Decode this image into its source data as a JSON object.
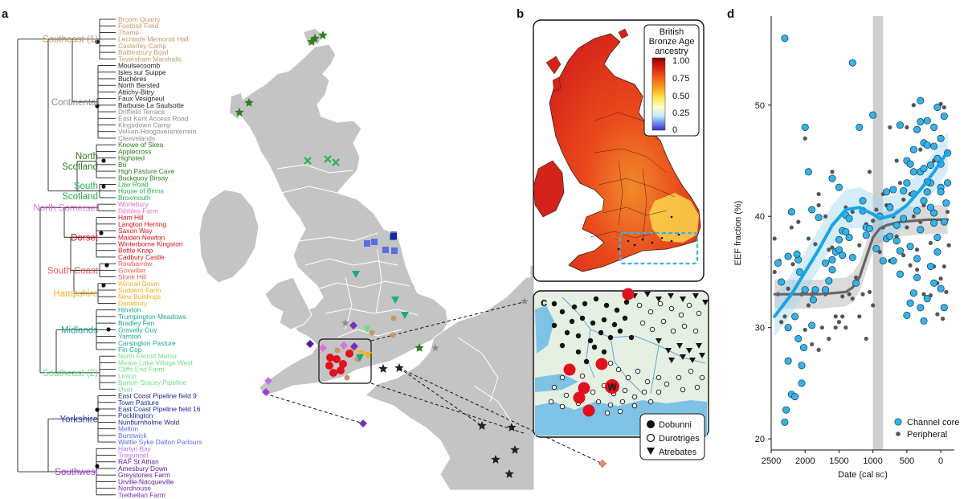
{
  "panel_labels": {
    "a": "a",
    "b": "b",
    "c": "c",
    "d": "d"
  },
  "tree": {
    "groups": [
      {
        "label": "Southeast (1)",
        "color": "#c49a6c",
        "leaves": [
          "Broom Quarry",
          "Football Field",
          "Thame",
          "Lechlade Memorial Hall",
          "Casterley Camp",
          "Battlesbury Bowl",
          "Teversham Marshalls"
        ]
      },
      {
        "label": "Continental",
        "color": "#8c8c8c",
        "leaves": [
          "Moulsecoomb",
          "Isles sur Suippe",
          "Buchères",
          "North Bersted",
          "Attichy-Bitry",
          "Faux Vesigneul",
          "Barbuise La Saulsotte",
          "Driffield Terrace",
          "East Kent Access Road",
          "Kingsdown Camp",
          "Velsen-Hoogoverenterrein",
          "Cleevelands"
        ],
        "leaf_colors": [
          "#222",
          "#222",
          "#222",
          "#222",
          "#222",
          "#222",
          "#222",
          "#8c8c8c",
          "#8c8c8c",
          "#8c8c8c",
          "#8c8c8c",
          "#8c8c8c"
        ]
      },
      {
        "label": "North\nScotland",
        "color": "#2e7d1e",
        "leaves": [
          "Knowe of Skea",
          "Applecross",
          "Highsted",
          "Bu",
          "High Pasture Cave",
          "Buckquoy Birsay"
        ]
      },
      {
        "label": "South\nScotland",
        "color": "#22b24c",
        "leaves": [
          "Law Road",
          "House of Binns",
          "Broxmouth"
        ]
      },
      {
        "label": "North Somerset",
        "color": "#e070d8",
        "leaves": [
          "Worlebury",
          "Dibbles Farm"
        ]
      },
      {
        "label": "Dorset",
        "color": "#e0101c",
        "leaves": [
          "Ham Hill",
          "Langton Herring",
          "Saxon Way",
          "Maiden Newton",
          "Winterborne Kingston",
          "Bottle Knap",
          "Cadbury Castle"
        ]
      },
      {
        "label": "South Coast",
        "color": "#f05a5a",
        "leaves": [
          "Rowbarrow",
          "Goxwiller",
          "Slonk Hill"
        ]
      },
      {
        "label": "Hampshire",
        "color": "#f0b020",
        "leaves": [
          "Winnall Down",
          "Suddern Farm",
          "New Buildings",
          "Danebury"
        ]
      },
      {
        "label": "Midlands",
        "color": "#1aa890",
        "leaves": [
          "Hinxton",
          "Trumpington Meadows",
          "Bradley Fen",
          "Gravelly Guy",
          "Yarnton",
          "Carsington Pasture",
          "Fin Cop"
        ]
      },
      {
        "label": "Southeast (2)",
        "color": "#6fe08a",
        "leaves": [
          "North Ferrott Manor",
          "Meare Lake Village West",
          "Cliffs End Farm",
          "Linton",
          "Barton-Stacey Pipeline",
          "Over"
        ]
      },
      {
        "label": "Yorkshire",
        "color": "#2a3ab0",
        "leaves": [
          "East Coast Pipeline field 9",
          "Town Pasture",
          "East Coast Pipeline field 16",
          "Pocklington",
          "Nunburnholme Wold",
          "Melton",
          "Burstwick",
          "Wattle Syke Dalton Parlours"
        ],
        "leaf_colors": [
          "#1a2a90",
          "#1a2a90",
          "#1a2a90",
          "#1a2a90",
          "#1a2a90",
          "#5b6ee0",
          "#5b6ee0",
          "#5b6ee0"
        ]
      },
      {
        "label": "Southwest",
        "color": "#a040d8",
        "leaves": [
          "Harlyn Bay",
          "Tregunnel",
          "RAF St Athan",
          "Amesbury Down",
          "Greystones Farm",
          "Urville-Nacqueville",
          "Nordhouse",
          "Trethellan Farm"
        ],
        "leaf_colors": [
          "#c070e8",
          "#c070e8",
          "#5a1a90",
          "#5a1a90",
          "#5a1a90",
          "#5a1a90",
          "#7a30b8",
          "#7a30b8"
        ]
      }
    ]
  },
  "map_b": {
    "legend_title": "British Bronze Age ancestry",
    "legend_title_lines": [
      "British",
      "Bronze Age",
      "ancestry"
    ],
    "legend_ticks": [
      "1.00",
      "0.75",
      "0.50",
      "0.25",
      "0"
    ]
  },
  "map_c": {
    "legend": [
      {
        "symbol": "circle-filled",
        "label": "Dobunni"
      },
      {
        "symbol": "circle-open",
        "label": "Durotriges"
      },
      {
        "symbol": "triangle",
        "label": "Atrebates"
      }
    ],
    "marker_w": "W"
  },
  "chart_data": {
    "type": "scatter",
    "title": "",
    "xlabel": "Date (cal BC)",
    "xlabel_main": "Date (cal ",
    "xlabel_sc": "BC",
    "xlabel_end": ")",
    "ylabel": "EEF fraction (%)",
    "xlim": [
      2500,
      -200
    ],
    "ylim": [
      19,
      58
    ],
    "x_ticks": [
      2500,
      2000,
      1500,
      1000,
      500,
      0
    ],
    "y_ticks": [
      20,
      30,
      40,
      50
    ],
    "shaded_band": [
      1000,
      850
    ],
    "legend": [
      "Channel core",
      "Peripheral"
    ],
    "colors": {
      "channel_core": "#36b2e8",
      "peripheral": "#555555",
      "band": "#cfcfcf"
    },
    "series": [
      {
        "name": "Channel core",
        "trend": [
          [
            2450,
            31
          ],
          [
            2200,
            33
          ],
          [
            2000,
            35
          ],
          [
            1800,
            37
          ],
          [
            1600,
            39.2
          ],
          [
            1400,
            40.6
          ],
          [
            1200,
            40.8
          ],
          [
            1000,
            40.2
          ],
          [
            900,
            39.8
          ],
          [
            700,
            40.1
          ],
          [
            500,
            41.0
          ],
          [
            300,
            42.4
          ],
          [
            100,
            44.0
          ],
          [
            -100,
            45.8
          ]
        ],
        "points": [
          [
            2300,
            56
          ],
          [
            1300,
            53.8
          ],
          [
            2200,
            40.4
          ],
          [
            2100,
            36.1
          ],
          [
            2000,
            48
          ],
          [
            1950,
            44
          ],
          [
            1900,
            40.6
          ],
          [
            1800,
            39.9
          ],
          [
            1700,
            35.8
          ],
          [
            1600,
            43.4
          ],
          [
            1500,
            42.6
          ],
          [
            1450,
            38.7
          ],
          [
            1400,
            40.1
          ],
          [
            1350,
            38.1
          ],
          [
            1200,
            48
          ],
          [
            1100,
            39
          ],
          [
            1000,
            49.1
          ],
          [
            900,
            40
          ],
          [
            800,
            38
          ],
          [
            700,
            36
          ],
          [
            600,
            48.2
          ],
          [
            500,
            45
          ],
          [
            400,
            44
          ],
          [
            300,
            50.4
          ],
          [
            250,
            46.6
          ],
          [
            200,
            46.4
          ],
          [
            150,
            43
          ],
          [
            100,
            48
          ],
          [
            50,
            49.8
          ],
          [
            0,
            47
          ],
          [
            -50,
            49
          ],
          [
            -100,
            43
          ],
          [
            2250,
            30
          ],
          [
            2150,
            31
          ],
          [
            2100,
            29
          ],
          [
            2050,
            25
          ],
          [
            2250,
            27
          ],
          [
            2300,
            21.5
          ],
          [
            2280,
            22.6
          ],
          [
            2200,
            24
          ],
          [
            2150,
            23.8
          ],
          [
            2050,
            26.6
          ],
          [
            2020,
            28.2
          ],
          [
            1900,
            30.2
          ],
          [
            1700,
            33.4
          ],
          [
            1600,
            35.2
          ],
          [
            1550,
            36.8
          ],
          [
            1500,
            37.9
          ],
          [
            1450,
            36.5
          ],
          [
            1300,
            36.3
          ],
          [
            1250,
            34
          ],
          [
            1150,
            41.4
          ],
          [
            1050,
            38.9
          ],
          [
            950,
            37.1
          ],
          [
            850,
            36
          ],
          [
            750,
            38.2
          ],
          [
            650,
            39.2
          ],
          [
            550,
            39.8
          ],
          [
            450,
            37.3
          ],
          [
            350,
            36.2
          ],
          [
            300,
            38.8
          ],
          [
            250,
            41.4
          ],
          [
            200,
            42.2
          ],
          [
            150,
            44.6
          ],
          [
            100,
            40.3
          ],
          [
            50,
            38.1
          ],
          [
            0,
            42.6
          ],
          [
            -50,
            39.5
          ],
          [
            500,
            31.1
          ],
          [
            450,
            32.2
          ],
          [
            400,
            33.1
          ],
          [
            350,
            34.5
          ],
          [
            300,
            31.8
          ],
          [
            250,
            30.6
          ],
          [
            200,
            32.6
          ],
          [
            150,
            35.5
          ],
          [
            100,
            34
          ],
          [
            50,
            36.8
          ],
          [
            0,
            33.5
          ],
          [
            -50,
            31.8
          ],
          [
            600,
            34.8
          ],
          [
            550,
            42.3
          ],
          [
            500,
            43
          ],
          [
            400,
            42
          ],
          [
            350,
            40.5
          ],
          [
            300,
            44
          ],
          [
            250,
            44.3
          ],
          [
            200,
            43.1
          ],
          [
            150,
            40.8
          ],
          [
            100,
            39.4
          ],
          [
            50,
            45.2
          ],
          [
            0,
            44.7
          ],
          [
            -100,
            45.7
          ],
          [
            700,
            42.4
          ],
          [
            650,
            37.8
          ],
          [
            600,
            36.9
          ],
          [
            2400,
            35.8
          ],
          [
            2350,
            34.1
          ],
          [
            2250,
            36.4
          ],
          [
            2120,
            36.6
          ],
          [
            2080,
            35
          ],
          [
            2000,
            33.4
          ],
          [
            1880,
            32.5
          ],
          [
            1850,
            33.4
          ],
          [
            1650,
            34.2
          ],
          [
            1600,
            36.1
          ],
          [
            1500,
            37
          ],
          [
            1400,
            38.6
          ],
          [
            1350,
            39.8
          ],
          [
            1150,
            40.5
          ],
          [
            1100,
            38.3
          ],
          [
            800,
            42.2
          ],
          [
            750,
            40.8
          ],
          [
            450,
            44.7
          ],
          [
            400,
            46
          ],
          [
            350,
            47.8
          ],
          [
            300,
            48.5
          ],
          [
            200,
            48.6
          ],
          [
            100,
            46.3
          ],
          [
            0,
            42.2
          ],
          [
            -80,
            41.2
          ]
        ]
      },
      {
        "name": "Peripheral",
        "trend": [
          [
            2450,
            33
          ],
          [
            2200,
            33
          ],
          [
            2000,
            33
          ],
          [
            1800,
            33
          ],
          [
            1600,
            33.1
          ],
          [
            1400,
            33.2
          ],
          [
            1300,
            33.6
          ],
          [
            1200,
            34.5
          ],
          [
            1100,
            36.3
          ],
          [
            1000,
            38.1
          ],
          [
            900,
            38.9
          ],
          [
            800,
            39.2
          ],
          [
            600,
            39.5
          ],
          [
            400,
            39.6
          ],
          [
            200,
            39.7
          ],
          [
            0,
            39.7
          ],
          [
            -100,
            39.7
          ]
        ],
        "points": [
          [
            2450,
            38
          ],
          [
            2400,
            33
          ],
          [
            2350,
            30.5
          ],
          [
            2300,
            31
          ],
          [
            2150,
            31
          ],
          [
            2100,
            35
          ],
          [
            2050,
            33
          ],
          [
            1950,
            32
          ],
          [
            1900,
            33
          ],
          [
            1850,
            37.5
          ],
          [
            1800,
            42
          ],
          [
            1750,
            30
          ],
          [
            1700,
            33
          ],
          [
            1650,
            37
          ],
          [
            1550,
            31
          ],
          [
            1500,
            30.5
          ],
          [
            1450,
            31
          ],
          [
            1400,
            30
          ],
          [
            1350,
            33
          ],
          [
            1300,
            32.6
          ],
          [
            1250,
            34.5
          ],
          [
            1200,
            31
          ],
          [
            1150,
            33
          ],
          [
            1100,
            29
          ],
          [
            1050,
            33.2
          ],
          [
            1000,
            32
          ],
          [
            950,
            37
          ],
          [
            900,
            36.8
          ],
          [
            850,
            39
          ],
          [
            800,
            41
          ],
          [
            750,
            36
          ],
          [
            700,
            40
          ],
          [
            650,
            45
          ],
          [
            600,
            43
          ],
          [
            550,
            41.5
          ],
          [
            500,
            39
          ],
          [
            450,
            42
          ],
          [
            400,
            40
          ],
          [
            350,
            37
          ],
          [
            300,
            39.5
          ],
          [
            250,
            41
          ],
          [
            200,
            43
          ],
          [
            150,
            37.6
          ],
          [
            100,
            35.5
          ],
          [
            50,
            34
          ],
          [
            0,
            34.4
          ],
          [
            -50,
            35.5
          ],
          [
            -100,
            40.4
          ],
          [
            -120,
            37.4
          ],
          [
            2000,
            47
          ],
          [
            1600,
            44
          ],
          [
            1050,
            44
          ],
          [
            750,
            48
          ],
          [
            500,
            48
          ],
          [
            300,
            46
          ],
          [
            100,
            45
          ],
          [
            -50,
            49.8
          ],
          [
            0,
            50.1
          ],
          [
            400,
            50
          ],
          [
            2200,
            39
          ],
          [
            2100,
            39.5
          ],
          [
            1950,
            38
          ],
          [
            1800,
            41
          ],
          [
            1700,
            40
          ],
          [
            1600,
            37.2
          ],
          [
            1400,
            40.8
          ],
          [
            1300,
            40.4
          ],
          [
            1200,
            37.4
          ],
          [
            1100,
            39.3
          ],
          [
            1000,
            39.6
          ],
          [
            950,
            40.6
          ],
          [
            850,
            42
          ],
          [
            750,
            41
          ],
          [
            650,
            38.2
          ],
          [
            550,
            36.5
          ],
          [
            450,
            35.6
          ],
          [
            350,
            35.2
          ],
          [
            250,
            33
          ],
          [
            150,
            32.9
          ],
          [
            50,
            31.2
          ],
          [
            -30,
            30.8
          ],
          [
            -80,
            33.2
          ],
          [
            2450,
            35
          ],
          [
            2380,
            36
          ],
          [
            2250,
            33.5
          ],
          [
            2180,
            35.7
          ],
          [
            2000,
            29.8
          ],
          [
            1900,
            28.5
          ],
          [
            1800,
            28
          ],
          [
            1650,
            29
          ],
          [
            1550,
            30
          ],
          [
            1450,
            32.8
          ]
        ]
      }
    ]
  }
}
